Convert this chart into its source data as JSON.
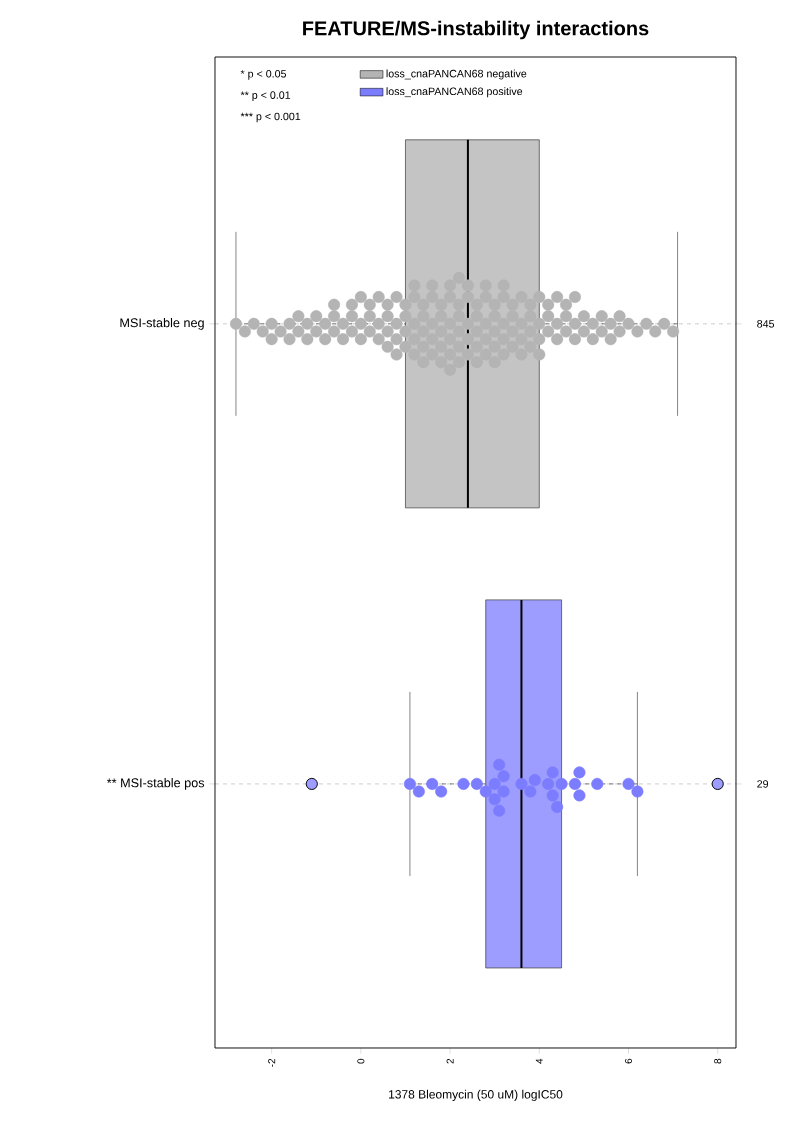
{
  "chart_data": {
    "type": "box",
    "orientation": "horizontal",
    "title": "FEATURE/MS-instability interactions",
    "xlabel": "1378 Bleomycin (50 uM) logIC50",
    "categories": [
      "MSI-stable neg",
      "** MSI-stable pos"
    ],
    "colors": [
      "#c4c4c4",
      "#9d9dff"
    ],
    "boxes": [
      {
        "low": -2.8,
        "q1": 1.0,
        "median": 2.4,
        "q3": 4.0,
        "high": 7.1
      },
      {
        "low": 1.1,
        "q1": 2.8,
        "median": 3.6,
        "q3": 4.5,
        "high": 6.2,
        "outliers": [
          -1.1,
          8.0
        ]
      }
    ],
    "series": [
      {
        "name": "loss_cnaPANCAN68 negative",
        "type": "scatter",
        "color": "#b4b4b4",
        "x": [
          "MSI-stable neg",
          "MSI-stable neg",
          "MSI-stable neg",
          "MSI-stable neg",
          "MSI-stable neg",
          "MSI-stable neg",
          "MSI-stable neg",
          "MSI-stable neg",
          "MSI-stable neg",
          "MSI-stable neg",
          "MSI-stable neg",
          "MSI-stable neg",
          "MSI-stable neg",
          "MSI-stable neg",
          "MSI-stable neg",
          "MSI-stable neg",
          "MSI-stable neg",
          "MSI-stable neg",
          "MSI-stable neg",
          "MSI-stable neg",
          "MSI-stable neg",
          "MSI-stable neg",
          "MSI-stable neg",
          "MSI-stable neg",
          "MSI-stable neg",
          "MSI-stable neg",
          "MSI-stable neg",
          "MSI-stable neg",
          "MSI-stable neg",
          "MSI-stable neg",
          "MSI-stable neg",
          "MSI-stable neg",
          "MSI-stable neg",
          "MSI-stable neg",
          "MSI-stable neg",
          "MSI-stable neg",
          "MSI-stable neg",
          "MSI-stable neg",
          "MSI-stable neg",
          "MSI-stable neg",
          "MSI-stable neg",
          "MSI-stable neg",
          "MSI-stable neg",
          "MSI-stable neg",
          "MSI-stable neg",
          "MSI-stable neg",
          "MSI-stable neg",
          "MSI-stable neg",
          "MSI-stable neg",
          "MSI-stable neg",
          "MSI-stable neg",
          "MSI-stable neg",
          "MSI-stable neg",
          "MSI-stable neg",
          "MSI-stable neg",
          "MSI-stable neg",
          "MSI-stable neg",
          "MSI-stable neg",
          "MSI-stable neg",
          "MSI-stable neg",
          "MSI-stable neg",
          "MSI-stable neg",
          "MSI-stable neg",
          "MSI-stable neg",
          "MSI-stable neg",
          "MSI-stable neg",
          "MSI-stable neg",
          "MSI-stable neg",
          "MSI-stable neg",
          "MSI-stable neg",
          "MSI-stable neg",
          "MSI-stable neg",
          "MSI-stable neg",
          "MSI-stable neg",
          "MSI-stable neg",
          "MSI-stable neg",
          "MSI-stable neg",
          "MSI-stable neg",
          "MSI-stable neg",
          "MSI-stable neg",
          "MSI-stable neg",
          "MSI-stable neg",
          "MSI-stable neg",
          "MSI-stable neg",
          "MSI-stable neg",
          "MSI-stable neg",
          "MSI-stable neg",
          "MSI-stable neg",
          "MSI-stable neg",
          "MSI-stable neg",
          "MSI-stable neg",
          "MSI-stable neg",
          "MSI-stable neg",
          "MSI-stable neg",
          "MSI-stable neg",
          "MSI-stable neg",
          "MSI-stable neg",
          "MSI-stable neg",
          "MSI-stable neg",
          "MSI-stable neg",
          "MSI-stable neg",
          "MSI-stable neg",
          "MSI-stable neg",
          "MSI-stable neg",
          "MSI-stable neg",
          "MSI-stable neg",
          "MSI-stable neg",
          "MSI-stable neg",
          "MSI-stable neg",
          "MSI-stable neg",
          "MSI-stable neg",
          "MSI-stable neg",
          "MSI-stable neg",
          "MSI-stable neg",
          "MSI-stable neg",
          "MSI-stable neg",
          "MSI-stable neg",
          "MSI-stable neg",
          "MSI-stable neg",
          "MSI-stable neg",
          "MSI-stable neg",
          "MSI-stable neg",
          "MSI-stable neg",
          "MSI-stable neg",
          "MSI-stable neg",
          "MSI-stable neg",
          "MSI-stable neg",
          "MSI-stable neg",
          "MSI-stable neg",
          "MSI-stable neg",
          "MSI-stable neg",
          "MSI-stable neg",
          "MSI-stable neg",
          "MSI-stable neg",
          "MSI-stable neg",
          "MSI-stable neg",
          "MSI-stable neg",
          "MSI-stable neg",
          "MSI-stable neg",
          "MSI-stable neg",
          "MSI-stable neg",
          "MSI-stable neg",
          "MSI-stable neg",
          "MSI-stable neg",
          "MSI-stable neg",
          "MSI-stable neg",
          "MSI-stable neg"
        ],
        "values": [
          -2.8,
          -2.6,
          -2.4,
          -2.2,
          -2.0,
          -2.0,
          -1.8,
          -1.6,
          -1.6,
          -1.4,
          -1.4,
          -1.2,
          -1.2,
          -1.0,
          -1.0,
          -0.8,
          -0.8,
          -0.6,
          -0.6,
          -0.6,
          -0.4,
          -0.4,
          -0.2,
          -0.2,
          -0.2,
          0.0,
          0.0,
          0.0,
          0.2,
          0.2,
          0.2,
          0.4,
          0.4,
          0.4,
          0.6,
          0.6,
          0.6,
          0.6,
          0.8,
          0.8,
          0.8,
          0.8,
          1.0,
          1.0,
          1.0,
          1.0,
          1.2,
          1.2,
          1.2,
          1.2,
          1.2,
          1.4,
          1.4,
          1.4,
          1.4,
          1.4,
          1.6,
          1.6,
          1.6,
          1.6,
          1.6,
          1.8,
          1.8,
          1.8,
          1.8,
          1.8,
          2.0,
          2.0,
          2.0,
          2.0,
          2.0,
          2.0,
          2.2,
          2.2,
          2.2,
          2.2,
          2.2,
          2.2,
          2.4,
          2.4,
          2.4,
          2.4,
          2.4,
          2.6,
          2.6,
          2.6,
          2.6,
          2.6,
          2.8,
          2.8,
          2.8,
          2.8,
          2.8,
          3.0,
          3.0,
          3.0,
          3.0,
          3.0,
          3.2,
          3.2,
          3.2,
          3.2,
          3.2,
          3.4,
          3.4,
          3.4,
          3.4,
          3.6,
          3.6,
          3.6,
          3.6,
          3.8,
          3.8,
          3.8,
          3.8,
          4.0,
          4.0,
          4.0,
          4.0,
          4.2,
          4.2,
          4.2,
          4.4,
          4.4,
          4.4,
          4.6,
          4.6,
          4.6,
          4.8,
          4.8,
          4.8,
          5.0,
          5.0,
          5.2,
          5.2,
          5.4,
          5.4,
          5.6,
          5.6,
          5.8,
          5.8,
          6.0,
          6.2,
          6.4,
          6.6,
          6.8,
          7.0
        ]
      },
      {
        "name": "loss_cnaPANCAN68 positive",
        "type": "scatter",
        "color": "#7c7cff",
        "x": [
          "** MSI-stable pos",
          "** MSI-stable pos",
          "** MSI-stable pos",
          "** MSI-stable pos",
          "** MSI-stable pos",
          "** MSI-stable pos",
          "** MSI-stable pos",
          "** MSI-stable pos",
          "** MSI-stable pos",
          "** MSI-stable pos",
          "** MSI-stable pos",
          "** MSI-stable pos",
          "** MSI-stable pos",
          "** MSI-stable pos",
          "** MSI-stable pos",
          "** MSI-stable pos",
          "** MSI-stable pos",
          "** MSI-stable pos",
          "** MSI-stable pos",
          "** MSI-stable pos",
          "** MSI-stable pos",
          "** MSI-stable pos",
          "** MSI-stable pos",
          "** MSI-stable pos",
          "** MSI-stable pos",
          "** MSI-stable pos",
          "** MSI-stable pos"
        ],
        "values": [
          1.1,
          1.3,
          1.6,
          1.8,
          2.3,
          2.6,
          2.8,
          3.0,
          3.0,
          3.2,
          3.2,
          3.1,
          3.1,
          3.6,
          3.8,
          3.9,
          4.2,
          4.3,
          4.3,
          4.4,
          4.5,
          4.8,
          4.9,
          4.9,
          5.3,
          6.0,
          6.2
        ]
      }
    ],
    "xlim": [
      -3.27,
      8.41
    ],
    "xticks": [
      -2,
      0,
      2,
      4,
      6,
      8
    ],
    "grid": "y",
    "legend": "top",
    "marker": "circle",
    "annotations": [
      "* p < 0.05",
      "** p < 0.01",
      "*** p < 0.001",
      "845",
      "29"
    ]
  }
}
